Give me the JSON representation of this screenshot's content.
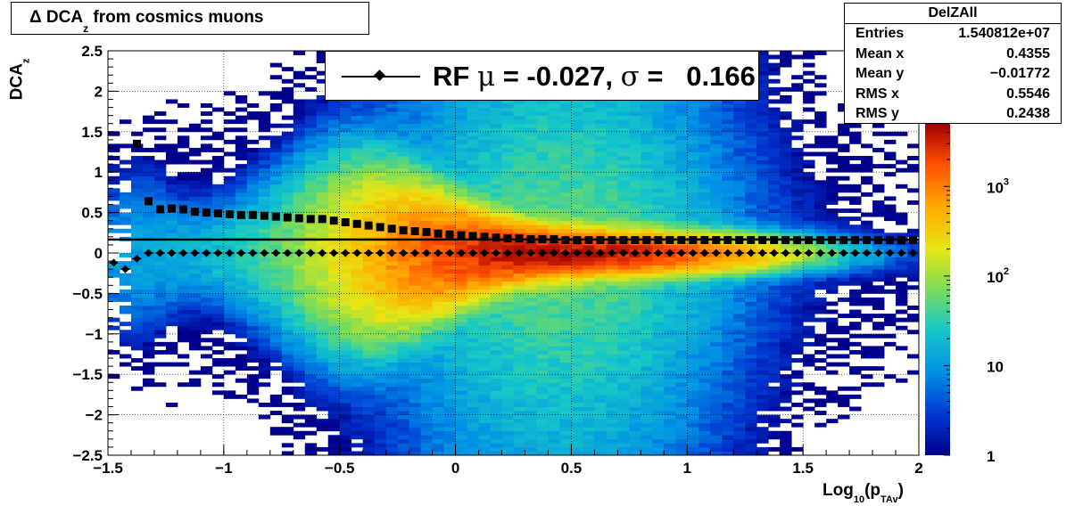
{
  "chart_data": {
    "type": "heatmap",
    "title": "Δ DCA_z from cosmics muons",
    "title_parts": {
      "pre": "Δ DCA",
      "sub": "z",
      "post": " from cosmics muons"
    },
    "xlabel": "Log_10(p_TAv)",
    "xlabel_parts": {
      "pre": "Log",
      "sub1": "10",
      "mid": "(p",
      "sub2": "TAv",
      "post": ")"
    },
    "ylabel": "DCA_z",
    "ylabel_parts": {
      "pre": "DCA",
      "sub": "z"
    },
    "xlim": [
      -1.5,
      2
    ],
    "ylim": [
      -2.5,
      2.5
    ],
    "x_ticks": [
      -1.5,
      -1,
      -0.5,
      0,
      0.5,
      1,
      1.5,
      2
    ],
    "x_tick_labels": [
      "−1.5",
      "−1",
      "−0.5",
      "0",
      "0.5",
      "1",
      "1.5",
      "2"
    ],
    "y_ticks": [
      -2.5,
      -2,
      -1.5,
      -1,
      -0.5,
      0,
      0.5,
      1,
      1.5,
      2,
      2.5
    ],
    "y_tick_labels": [
      "−2.5",
      "−2",
      "−1.5",
      "−1",
      "−0.5",
      "0",
      "0.5",
      "1",
      "1.5",
      "2",
      "2.5"
    ],
    "z_scale": "log",
    "z_range": [
      1,
      5000
    ],
    "z_ticks": [
      1,
      10,
      100,
      1000
    ],
    "z_tick_labels": [
      {
        "base": "1",
        "exp": ""
      },
      {
        "base": "10",
        "exp": ""
      },
      {
        "base": "10",
        "exp": "2"
      },
      {
        "base": "10",
        "exp": "3"
      }
    ],
    "grid": true,
    "sigma_line": 0.166,
    "series": [
      {
        "marker": "square",
        "x": [
          -1.375,
          -1.325,
          -1.275,
          -1.225,
          -1.175,
          -1.125,
          -1.075,
          -1.025,
          -0.975,
          -0.925,
          -0.875,
          -0.825,
          -0.775,
          -0.725,
          -0.675,
          -0.625,
          -0.575,
          -0.525,
          -0.475,
          -0.425,
          -0.375,
          -0.325,
          -0.275,
          -0.225,
          -0.175,
          -0.125,
          -0.075,
          -0.025,
          0.025,
          0.075,
          0.125,
          0.175,
          0.225,
          0.275,
          0.325,
          0.375,
          0.425,
          0.475,
          0.525,
          0.575,
          0.625,
          0.675,
          0.725,
          0.775,
          0.825,
          0.875,
          0.925,
          0.975,
          1.025,
          1.075,
          1.125,
          1.175,
          1.225,
          1.275,
          1.325,
          1.375,
          1.425,
          1.475,
          1.525,
          1.575,
          1.625,
          1.675,
          1.725,
          1.775,
          1.825,
          1.875,
          1.925,
          1.975
        ],
        "y": [
          1.35,
          0.64,
          0.54,
          0.55,
          0.54,
          0.51,
          0.5,
          0.49,
          0.48,
          0.47,
          0.47,
          0.46,
          0.45,
          0.44,
          0.43,
          0.42,
          0.42,
          0.4,
          0.38,
          0.36,
          0.34,
          0.32,
          0.3,
          0.28,
          0.27,
          0.26,
          0.24,
          0.23,
          0.22,
          0.21,
          0.2,
          0.19,
          0.18,
          0.18,
          0.17,
          0.17,
          0.17,
          0.16,
          0.16,
          0.16,
          0.16,
          0.16,
          0.16,
          0.16,
          0.16,
          0.16,
          0.16,
          0.16,
          0.16,
          0.16,
          0.16,
          0.16,
          0.16,
          0.16,
          0.16,
          0.16,
          0.16,
          0.16,
          0.16,
          0.16,
          0.16,
          0.16,
          0.16,
          0.16,
          0.16,
          0.16,
          0.16,
          0.16
        ]
      },
      {
        "name": "RF",
        "marker": "diamond",
        "x": [
          -1.475,
          -1.425,
          -1.375,
          -1.325,
          -1.275,
          -1.225,
          -1.175,
          -1.125,
          -1.075,
          -1.025,
          -0.975,
          -0.925,
          -0.875,
          -0.825,
          -0.775,
          -0.725,
          -0.675,
          -0.625,
          -0.575,
          -0.525,
          -0.475,
          -0.425,
          -0.375,
          -0.325,
          -0.275,
          -0.225,
          -0.175,
          -0.125,
          -0.075,
          -0.025,
          0.025,
          0.075,
          0.125,
          0.175,
          0.225,
          0.275,
          0.325,
          0.375,
          0.425,
          0.475,
          0.525,
          0.575,
          0.625,
          0.675,
          0.725,
          0.775,
          0.825,
          0.875,
          0.925,
          0.975,
          1.025,
          1.075,
          1.125,
          1.175,
          1.225,
          1.275,
          1.325,
          1.375,
          1.425,
          1.475,
          1.525,
          1.575,
          1.625,
          1.675,
          1.725,
          1.775,
          1.825,
          1.875,
          1.925,
          1.975
        ],
        "y": [
          -0.12,
          -0.2,
          -0.07,
          0.0,
          0.0,
          0.0,
          0.0,
          0.0,
          0.0,
          0.0,
          0.0,
          0.0,
          0.0,
          0.0,
          0.0,
          0.0,
          0.0,
          0.0,
          0.0,
          0.0,
          0.0,
          0.0,
          0.0,
          0.0,
          0.0,
          0.0,
          0.0,
          0.0,
          0.0,
          0.0,
          0.0,
          0.0,
          0.0,
          0.0,
          0.0,
          0.0,
          0.0,
          0.0,
          0.0,
          0.0,
          0.0,
          0.0,
          0.0,
          0.0,
          0.0,
          0.0,
          0.0,
          0.0,
          0.0,
          0.0,
          0.0,
          0.0,
          0.0,
          0.0,
          0.0,
          0.0,
          0.0,
          0.0,
          0.0,
          0.0,
          0.0,
          0.0,
          0.0,
          0.0,
          0.0,
          0.0,
          0.0,
          0.0,
          0.0,
          0.0
        ]
      }
    ],
    "legend": {
      "placement": "top-center",
      "text_parts": {
        "a": "RF ",
        "mu": "μ",
        "b": " = -0.027, ",
        "sigma": "σ",
        "c": " =   0.166"
      }
    },
    "stats": {
      "name": "DelZAll",
      "rows": [
        {
          "label": "Entries",
          "value": "1.540812e+07"
        },
        {
          "label": "Mean x",
          "value": "0.4355"
        },
        {
          "label": "Mean y",
          "value": "−0.01772"
        },
        {
          "label": "RMS x",
          "value": "0.5546"
        },
        {
          "label": "RMS y",
          "value": "0.2438"
        }
      ]
    }
  }
}
